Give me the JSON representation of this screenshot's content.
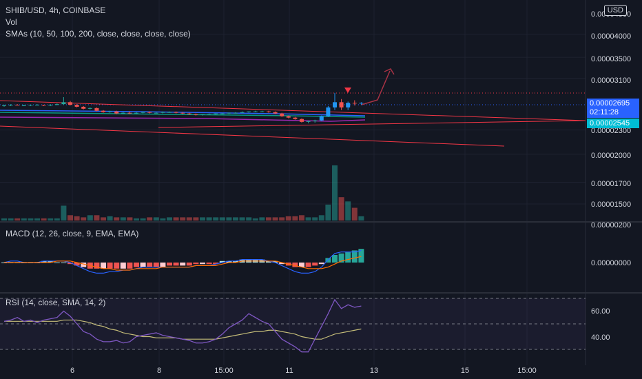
{
  "header": {
    "symbol_line": "SHIB/USD, 4h, COINBASE",
    "vol_label": "Vol",
    "sma_label": "SMAs (10, 50, 100, 200, close, close, close, close)",
    "currency_button": "USD"
  },
  "price_tags": {
    "current_price": "0.00002695",
    "countdown": "02:11:28",
    "sma_price": "0.00002545"
  },
  "chart_data": [
    {
      "type": "candlestick",
      "title": "SHIB/USD, 4h, COINBASE",
      "y_axis_labels": [
        "0.00004500",
        "0.00004000",
        "0.00003500",
        "0.00003100",
        "0.00002695",
        "0.00002545",
        "0.00002300",
        "0.00002000",
        "0.00001700",
        "0.00001500",
        "0.00000200"
      ],
      "x_tick_labels": [
        "6",
        "8",
        "15:00",
        "11",
        "13",
        "15",
        "15:00"
      ],
      "scale": "log",
      "colors": {
        "up": "#26a69a",
        "down": "#ef5350",
        "sma": "#f23645",
        "sma_alt": "#2962ff",
        "sma_green": "#089981",
        "sma_purple": "#9c27b0"
      },
      "series": [
        {
          "name": "SHIB/USD",
          "ohlc": [
            [
              2.64e-05,
              2.66e-05,
              2.63e-05,
              2.65e-05
            ],
            [
              2.65e-05,
              2.67e-05,
              2.64e-05,
              2.66e-05
            ],
            [
              2.66e-05,
              2.67e-05,
              2.65e-05,
              2.65e-05
            ],
            [
              2.65e-05,
              2.66e-05,
              2.64e-05,
              2.65e-05
            ],
            [
              2.65e-05,
              2.66e-05,
              2.64e-05,
              2.66e-05
            ],
            [
              2.66e-05,
              2.67e-05,
              2.65e-05,
              2.66e-05
            ],
            [
              2.66e-05,
              2.66e-05,
              2.64e-05,
              2.65e-05
            ],
            [
              2.65e-05,
              2.67e-05,
              2.64e-05,
              2.66e-05
            ],
            [
              2.66e-05,
              2.68e-05,
              2.65e-05,
              2.67e-05
            ],
            [
              2.67e-05,
              2.78e-05,
              2.66e-05,
              2.7e-05
            ],
            [
              2.7e-05,
              2.72e-05,
              2.65e-05,
              2.66e-05
            ],
            [
              2.66e-05,
              2.67e-05,
              2.62e-05,
              2.63e-05
            ],
            [
              2.63e-05,
              2.64e-05,
              2.59e-05,
              2.6e-05
            ],
            [
              2.6e-05,
              2.62e-05,
              2.59e-05,
              2.61e-05
            ],
            [
              2.61e-05,
              2.62e-05,
              2.56e-05,
              2.57e-05
            ],
            [
              2.57e-05,
              2.58e-05,
              2.54e-05,
              2.55e-05
            ],
            [
              2.55e-05,
              2.57e-05,
              2.54e-05,
              2.56e-05
            ],
            [
              2.56e-05,
              2.57e-05,
              2.52e-05,
              2.53e-05
            ],
            [
              2.53e-05,
              2.55e-05,
              2.52e-05,
              2.54e-05
            ],
            [
              2.54e-05,
              2.56e-05,
              2.52e-05,
              2.53e-05
            ],
            [
              2.53e-05,
              2.55e-05,
              2.52e-05,
              2.54e-05
            ],
            [
              2.54e-05,
              2.56e-05,
              2.53e-05,
              2.55e-05
            ],
            [
              2.55e-05,
              2.56e-05,
              2.53e-05,
              2.54e-05
            ],
            [
              2.54e-05,
              2.55e-05,
              2.53e-05,
              2.54e-05
            ],
            [
              2.54e-05,
              2.56e-05,
              2.53e-05,
              2.55e-05
            ],
            [
              2.55e-05,
              2.56e-05,
              2.54e-05,
              2.55e-05
            ],
            [
              2.55e-05,
              2.56e-05,
              2.53e-05,
              2.54e-05
            ],
            [
              2.54e-05,
              2.55e-05,
              2.52e-05,
              2.53e-05
            ],
            [
              2.53e-05,
              2.54e-05,
              2.51e-05,
              2.52e-05
            ],
            [
              2.52e-05,
              2.53e-05,
              2.5e-05,
              2.51e-05
            ],
            [
              2.51e-05,
              2.52e-05,
              2.5e-05,
              2.52e-05
            ],
            [
              2.52e-05,
              2.53e-05,
              2.51e-05,
              2.52e-05
            ],
            [
              2.52e-05,
              2.53e-05,
              2.51e-05,
              2.53e-05
            ],
            [
              2.53e-05,
              2.54e-05,
              2.52e-05,
              2.53e-05
            ],
            [
              2.53e-05,
              2.54e-05,
              2.52e-05,
              2.54e-05
            ],
            [
              2.54e-05,
              2.55e-05,
              2.53e-05,
              2.54e-05
            ],
            [
              2.54e-05,
              2.56e-05,
              2.53e-05,
              2.55e-05
            ],
            [
              2.55e-05,
              2.56e-05,
              2.54e-05,
              2.56e-05
            ],
            [
              2.56e-05,
              2.57e-05,
              2.55e-05,
              2.56e-05
            ],
            [
              2.56e-05,
              2.57e-05,
              2.55e-05,
              2.56e-05
            ],
            [
              2.56e-05,
              2.57e-05,
              2.54e-05,
              2.55e-05
            ],
            [
              2.55e-05,
              2.56e-05,
              2.52e-05,
              2.53e-05
            ],
            [
              2.53e-05,
              2.54e-05,
              2.48e-05,
              2.49e-05
            ],
            [
              2.49e-05,
              2.5e-05,
              2.46e-05,
              2.47e-05
            ],
            [
              2.47e-05,
              2.48e-05,
              2.44e-05,
              2.45e-05
            ],
            [
              2.45e-05,
              2.46e-05,
              2.4e-05,
              2.41e-05
            ],
            [
              2.41e-05,
              2.43e-05,
              2.39e-05,
              2.42e-05
            ],
            [
              2.42e-05,
              2.44e-05,
              2.4e-05,
              2.43e-05
            ],
            [
              2.43e-05,
              2.5e-05,
              2.42e-05,
              2.49e-05
            ],
            [
              2.49e-05,
              2.64e-05,
              2.48e-05,
              2.62e-05
            ],
            [
              2.62e-05,
              2.85e-05,
              2.58e-05,
              2.7e-05
            ],
            [
              2.7e-05,
              2.75e-05,
              2.58e-05,
              2.62e-05
            ],
            [
              2.62e-05,
              2.71e-05,
              2.58e-05,
              2.69e-05
            ],
            [
              2.69e-05,
              2.73e-05,
              2.65e-05,
              2.68e-05
            ],
            [
              2.68e-05,
              2.7e-05,
              2.66e-05,
              2.69e-05
            ]
          ]
        },
        {
          "name": "Vol",
          "values": [
            2,
            2,
            2,
            2,
            2,
            2,
            2,
            2,
            2,
            14,
            5,
            4,
            3,
            5,
            5,
            3,
            4,
            3,
            3,
            3,
            2,
            2,
            3,
            3,
            2,
            3,
            3,
            3,
            3,
            3,
            3,
            3,
            3,
            3,
            3,
            3,
            3,
            3,
            2,
            3,
            3,
            3,
            3,
            4,
            4,
            5,
            3,
            3,
            5,
            15,
            52,
            22,
            18,
            12,
            4
          ]
        }
      ]
    },
    {
      "type": "line",
      "title": "MACD (12, 26, close, 9, EMA, EMA)",
      "y_axis_labels": [
        "0.00000000"
      ],
      "series": [
        {
          "name": "Histogram",
          "values": [
            0,
            0,
            0,
            0,
            0,
            0,
            1,
            1,
            0,
            0,
            -1,
            -2,
            -3,
            -4,
            -4,
            -4,
            -4,
            -4,
            -4,
            -4,
            -3,
            -3,
            -3,
            -3,
            -3,
            -2,
            -2,
            -2,
            -2,
            -1,
            -1,
            -1,
            -1,
            1,
            1,
            1,
            2,
            2,
            2,
            2,
            1,
            1,
            -1,
            -2,
            -3,
            -3,
            -3,
            -2,
            -1,
            3,
            5,
            6,
            7,
            8,
            9
          ]
        },
        {
          "name": "MACD",
          "values": [
            0,
            1,
            1,
            0,
            0,
            0,
            1,
            1,
            1,
            1,
            0,
            -2,
            -4,
            -6,
            -7,
            -7,
            -6,
            -6,
            -5,
            -5,
            -4,
            -3,
            -3,
            -3,
            -3,
            -3,
            -3,
            -3,
            -3,
            -2,
            -2,
            -2,
            -1,
            0,
            1,
            1,
            2,
            2,
            2,
            2,
            1,
            0,
            -2,
            -4,
            -6,
            -7,
            -7,
            -6,
            -3,
            2,
            6,
            7,
            7,
            7,
            8
          ]
        },
        {
          "name": "Signal",
          "values": [
            0,
            0,
            0,
            0,
            0,
            0,
            0,
            0,
            1,
            1,
            1,
            0,
            -1,
            -2,
            -3,
            -4,
            -4,
            -5,
            -5,
            -5,
            -4,
            -4,
            -4,
            -4,
            -3,
            -3,
            -3,
            -3,
            -3,
            -2,
            -2,
            -2,
            -2,
            -1,
            0,
            0,
            1,
            1,
            1,
            1,
            1,
            1,
            0,
            -1,
            -2,
            -3,
            -4,
            -4,
            -4,
            -3,
            -1,
            1,
            2,
            3,
            4
          ]
        }
      ]
    },
    {
      "type": "line",
      "title": "RSI (14, close, SMA, 14, 2)",
      "y_axis_labels": [
        "60.00",
        "40.00"
      ],
      "band": [
        30,
        70
      ],
      "series": [
        {
          "name": "RSI",
          "values": [
            52,
            53,
            55,
            52,
            53,
            51,
            53,
            54,
            55,
            60,
            56,
            50,
            44,
            42,
            38,
            36,
            36,
            37,
            35,
            36,
            40,
            41,
            42,
            43,
            41,
            40,
            39,
            38,
            37,
            35,
            35,
            36,
            38,
            42,
            47,
            50,
            53,
            58,
            55,
            52,
            50,
            44,
            38,
            35,
            32,
            28,
            28,
            38,
            48,
            58,
            69,
            62,
            65,
            63,
            64
          ]
        },
        {
          "name": "RSI-based MA",
          "values": [
            52,
            52,
            52,
            52,
            52,
            52,
            52,
            52,
            52,
            53,
            53,
            53,
            52,
            51,
            49,
            48,
            46,
            45,
            43,
            42,
            41,
            40,
            40,
            39,
            39,
            39,
            39,
            38,
            38,
            38,
            38,
            38,
            38,
            39,
            40,
            41,
            42,
            43,
            44,
            44,
            45,
            45,
            44,
            43,
            42,
            40,
            39,
            38,
            38,
            40,
            42,
            43,
            44,
            45,
            46
          ]
        }
      ]
    }
  ]
}
